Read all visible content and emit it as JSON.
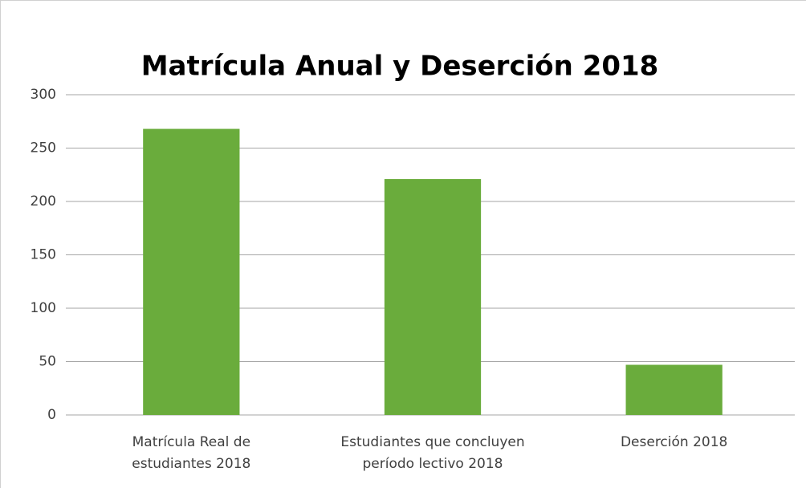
{
  "chart_data": {
    "type": "bar",
    "title": "Matrícula Anual y Deserción 2018",
    "categories": [
      "Matrícula Real de estudiantes 2018",
      "Estudiantes que concluyen período lectivo 2018",
      "Deserción 2018"
    ],
    "values": [
      268,
      221,
      47
    ],
    "color": "#6aac3c",
    "ylim": [
      0,
      300
    ],
    "yticks": [
      0,
      50,
      100,
      150,
      200,
      250,
      300
    ],
    "grid": true
  }
}
